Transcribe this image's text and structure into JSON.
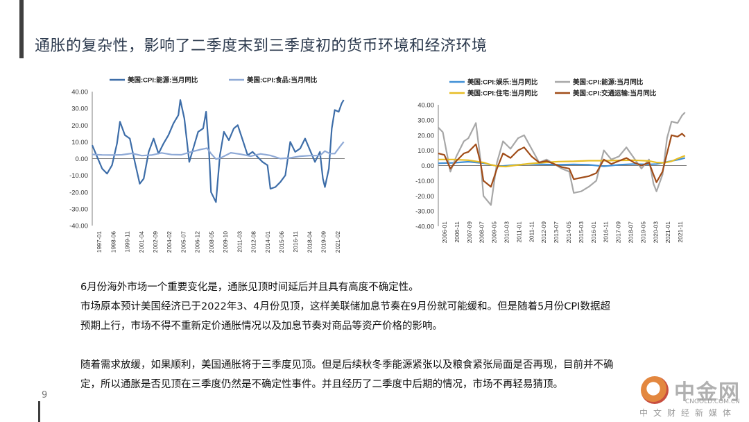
{
  "title": "通胀的复杂性，影响了二季度末到三季度初的货币环境和经济环境",
  "page_number": "9",
  "paragraphs": [
    "6月份海外市场一个重要变化是，通胀见顶时间延后并且具有高度不确定性。",
    "市场原本预计美国经济已于2022年3、4月份见顶，这样美联储加息节奏在9月份就可能缓和。但是随着5月份CPI数据超",
    "预期上行，市场不得不重新定价通胀情况以及加息节奏对商品等资产价格的影响。",
    "随着需求放缓，如果顺利，美国通胀将于三季度见顶。但是后续秋冬季能源紧张以及粮食紧张局面是否再现，目前并不确",
    "定，所以通胀是否见顶在三季度仍然是不确定性事件。并且经历了二季度中后期的情况，市场不再轻易猜顶。"
  ],
  "watermark": {
    "brand": "中金网",
    "url": "CNGOLD.COM.CN",
    "tagline": "中文财经新媒体"
  },
  "chart_data": [
    {
      "type": "line",
      "ylim": [
        -40,
        40
      ],
      "yticks": [
        "40.00",
        "30.00",
        "20.00",
        "10.00",
        "0.00",
        "-10.00",
        "-20.00",
        "-30.00",
        "-40.00"
      ],
      "legend_position": "top",
      "x_tick_labels": [
        "1997-01",
        "1998-06",
        "1999-11",
        "2001-04",
        "2002-09",
        "2004-02",
        "2005-07",
        "2006-12",
        "2008-05",
        "2009-10",
        "2011-03",
        "2012-08",
        "2014-01",
        "2015-06",
        "2016-11",
        "2018-04",
        "2019-09",
        "2021-02"
      ],
      "x_start": 1997.0,
      "x_end": 2022.5,
      "series": [
        {
          "name": "美国:CPI:能源:当月同比",
          "color": "#3d6da8",
          "x": [
            1997,
            1997.5,
            1998,
            1998.5,
            1999,
            1999.5,
            1999.8,
            2000.3,
            2000.8,
            2001.3,
            2001.8,
            2002.2,
            2002.7,
            2003.2,
            2003.7,
            2004.2,
            2004.7,
            2005.2,
            2005.7,
            2005.9,
            2006.3,
            2006.8,
            2007.2,
            2007.7,
            2008.2,
            2008.5,
            2008.8,
            2009.0,
            2009.5,
            2009.9,
            2010.3,
            2010.8,
            2011.3,
            2011.7,
            2012.2,
            2012.7,
            2013.2,
            2013.7,
            2014.2,
            2014.7,
            2015.0,
            2015.5,
            2016.0,
            2016.5,
            2017.0,
            2017.5,
            2018.0,
            2018.5,
            2019.0,
            2019.5,
            2020.0,
            2020.3,
            2020.5,
            2020.9,
            2021.2,
            2021.5,
            2021.9,
            2022.2,
            2022.4
          ],
          "values": [
            8,
            1,
            -6,
            -9,
            -4,
            9,
            22,
            14,
            12,
            -2,
            -15,
            -12,
            4,
            12,
            3,
            9,
            14,
            21,
            26,
            35,
            24,
            -2,
            6,
            16,
            18,
            28,
            4,
            -20,
            -26,
            2,
            16,
            11,
            18,
            20,
            11,
            2,
            4,
            1,
            -2,
            -4,
            -18,
            -17,
            -14,
            -10,
            10,
            4,
            6,
            12,
            5,
            -2,
            4,
            -12,
            -17,
            -6,
            18,
            29,
            28,
            33,
            35
          ]
        },
        {
          "name": "美国:CPI:食品:当月同比",
          "color": "#8ea9d6",
          "x": [
            1997,
            1998,
            1999,
            2000,
            2001,
            2002,
            2003,
            2004,
            2005,
            2006,
            2007,
            2008,
            2008.6,
            2009.0,
            2009.5,
            2010,
            2011,
            2012,
            2013,
            2014,
            2015,
            2016,
            2017,
            2018,
            2019,
            2020,
            2020.5,
            2021,
            2021.5,
            2022,
            2022.4
          ],
          "values": [
            2.5,
            2.2,
            2.1,
            2.3,
            3.1,
            1.8,
            2.1,
            3.4,
            2.4,
            2.3,
            4.0,
            5.5,
            6.2,
            3.0,
            -0.3,
            0.5,
            3.5,
            2.6,
            1.4,
            2.8,
            1.9,
            0.0,
            0.4,
            1.4,
            1.8,
            1.8,
            4.5,
            3.0,
            3.0,
            7.0,
            10.0
          ]
        }
      ]
    },
    {
      "type": "line",
      "ylim": [
        -40,
        40
      ],
      "yticks": [
        "40.00",
        "30.00",
        "20.00",
        "10.00",
        "0.00",
        "-10.00",
        "-20.00",
        "-30.00",
        "-40.00"
      ],
      "legend_position": "top",
      "x_tick_labels": [
        "2006-01",
        "2006-11",
        "2007-09",
        "2008-07",
        "2009-05",
        "2010-03",
        "2011-01",
        "2011-11",
        "2012-09",
        "2013-07",
        "2014-05",
        "2015-03",
        "2016-01",
        "2016-11",
        "2017-09",
        "2018-07",
        "2019-05",
        "2020-03",
        "2021-01",
        "2021-11"
      ],
      "x_start": 2006.0,
      "x_end": 2022.5,
      "series": [
        {
          "name": "美国:CPI:娱乐:当月同比",
          "color": "#3f8fd6",
          "x": [
            2006,
            2007,
            2008,
            2009,
            2010,
            2011,
            2012,
            2013,
            2014,
            2015,
            2016,
            2017,
            2018,
            2019,
            2020,
            2020.5,
            2021,
            2021.5,
            2022,
            2022.4
          ],
          "values": [
            1.5,
            1.8,
            2.5,
            1.5,
            -0.5,
            0.3,
            1.0,
            0.8,
            0.5,
            0.8,
            0.5,
            -0.5,
            0.5,
            1.0,
            0.8,
            1.0,
            2.0,
            3.0,
            4.0,
            5.0
          ]
        },
        {
          "name": "美国:CPI:能源:当月同比",
          "color": "#a7a7a7",
          "x": [
            2006,
            2006.3,
            2006.8,
            2007.2,
            2007.7,
            2008.0,
            2008.5,
            2008.8,
            2009.0,
            2009.5,
            2009.9,
            2010.3,
            2010.8,
            2011.3,
            2011.7,
            2012.2,
            2012.7,
            2013.2,
            2013.7,
            2014.2,
            2014.7,
            2015.0,
            2015.5,
            2016.0,
            2016.5,
            2017.0,
            2017.5,
            2018.0,
            2018.5,
            2019.0,
            2019.5,
            2020.0,
            2020.3,
            2020.5,
            2020.9,
            2021.2,
            2021.5,
            2021.9,
            2022.2,
            2022.4
          ],
          "values": [
            25,
            22,
            -4,
            6,
            16,
            18,
            28,
            4,
            -20,
            -26,
            2,
            16,
            11,
            18,
            20,
            11,
            2,
            4,
            1,
            -2,
            -4,
            -18,
            -17,
            -14,
            -10,
            10,
            4,
            6,
            12,
            5,
            -2,
            4,
            -12,
            -17,
            -6,
            18,
            29,
            28,
            33,
            35
          ]
        },
        {
          "name": "美国:CPI:住宅:当月同比",
          "color": "#e7bd25",
          "x": [
            2006,
            2007,
            2008,
            2009,
            2009.5,
            2010,
            2010.5,
            2011,
            2012,
            2013,
            2014,
            2015,
            2016,
            2017,
            2018,
            2019,
            2020,
            2020.5,
            2021,
            2021.5,
            2022,
            2022.4
          ],
          "values": [
            4.0,
            4.0,
            3.5,
            2.0,
            0.5,
            -0.5,
            -0.7,
            0.0,
            1.2,
            2.0,
            2.6,
            2.8,
            3.2,
            3.2,
            3.4,
            3.5,
            3.0,
            2.0,
            1.8,
            2.8,
            5.0,
            6.5
          ]
        },
        {
          "name": "美国:CPI:交通运输:当月同比",
          "color": "#a04c18",
          "x": [
            2006,
            2006.4,
            2006.8,
            2007.2,
            2007.7,
            2008.0,
            2008.5,
            2008.8,
            2009.0,
            2009.5,
            2009.9,
            2010.3,
            2010.8,
            2011.3,
            2011.7,
            2012.2,
            2012.7,
            2013.2,
            2013.7,
            2014.2,
            2014.7,
            2015.0,
            2015.5,
            2016.0,
            2016.5,
            2017.0,
            2017.5,
            2018.0,
            2018.5,
            2019.0,
            2019.5,
            2020.0,
            2020.3,
            2020.5,
            2020.9,
            2021.2,
            2021.5,
            2021.9,
            2022.2,
            2022.4
          ],
          "values": [
            8,
            7,
            -2,
            3,
            8,
            9,
            14,
            2,
            -10,
            -14,
            -2,
            8,
            5,
            10,
            12,
            6,
            2,
            3,
            1,
            -1,
            -2,
            -9,
            -8,
            -7,
            -5,
            4,
            1,
            3,
            5,
            2,
            0,
            2,
            -6,
            -11,
            -4,
            8,
            20,
            19,
            21,
            19
          ]
        }
      ]
    }
  ]
}
